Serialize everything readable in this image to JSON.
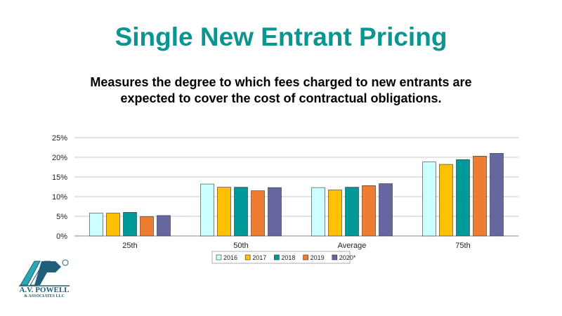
{
  "title": "Single New Entrant Pricing",
  "subtitle_line1": "Measures the degree to which fees charged to new entrants are",
  "subtitle_line2": "expected to cover the cost of contractual obligations.",
  "logo": {
    "name_line": "A.V. POWELL",
    "sub_line": "& ASSOCIATES LLC",
    "mark": "AVP",
    "colors": {
      "primary": "#1f5f7a",
      "accent": "#2aa7b5"
    }
  },
  "chart_data": {
    "type": "bar",
    "categories": [
      "25th",
      "50th",
      "Average",
      "75th"
    ],
    "series": [
      {
        "name": "2016",
        "color": "#ccffff",
        "values": [
          0.058,
          0.132,
          0.123,
          0.188
        ]
      },
      {
        "name": "2017",
        "color": "#ffc000",
        "values": [
          0.058,
          0.124,
          0.117,
          0.182
        ]
      },
      {
        "name": "2018",
        "color": "#009999",
        "values": [
          0.06,
          0.124,
          0.124,
          0.194
        ]
      },
      {
        "name": "2019",
        "color": "#ed7d31",
        "values": [
          0.049,
          0.115,
          0.128,
          0.203
        ]
      },
      {
        "name": "2020*",
        "color": "#6666a0",
        "values": [
          0.052,
          0.123,
          0.133,
          0.21
        ]
      }
    ],
    "yticks": [
      "0%",
      "5%",
      "10%",
      "15%",
      "20%",
      "25%"
    ],
    "ylim": [
      0,
      0.25
    ],
    "grid": true,
    "legend_position": "bottom"
  }
}
